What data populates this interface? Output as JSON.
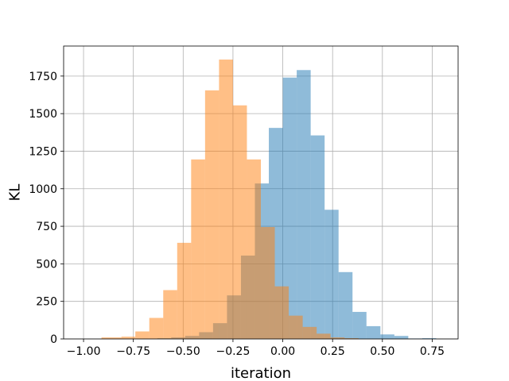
{
  "chart_data": {
    "type": "histogram",
    "xlabel": "iteration",
    "ylabel": "KL",
    "xlim": [
      -1.1,
      0.88
    ],
    "ylim": [
      0,
      1950
    ],
    "grid": true,
    "x_ticks": [
      -1.0,
      -0.75,
      -0.5,
      -0.25,
      0.0,
      0.25,
      0.5,
      0.75
    ],
    "x_tick_labels": [
      "−1.00",
      "−0.75",
      "−0.50",
      "−0.25",
      "0.00",
      "0.25",
      "0.50",
      "0.75"
    ],
    "y_ticks": [
      0,
      250,
      500,
      750,
      1000,
      1250,
      1500,
      1750
    ],
    "y_tick_labels": [
      "0",
      "250",
      "500",
      "750",
      "1000",
      "1250",
      "1500",
      "1750"
    ],
    "series": [
      {
        "color": "#1f77b4",
        "alpha": 0.5,
        "bins": [
          {
            "x0": -0.7,
            "x1": -0.63,
            "count": 2
          },
          {
            "x0": -0.63,
            "x1": -0.56,
            "count": 5
          },
          {
            "x0": -0.56,
            "x1": -0.49,
            "count": 10
          },
          {
            "x0": -0.49,
            "x1": -0.42,
            "count": 20
          },
          {
            "x0": -0.42,
            "x1": -0.35,
            "count": 45
          },
          {
            "x0": -0.35,
            "x1": -0.28,
            "count": 105
          },
          {
            "x0": -0.28,
            "x1": -0.21,
            "count": 290
          },
          {
            "x0": -0.21,
            "x1": -0.14,
            "count": 555
          },
          {
            "x0": -0.14,
            "x1": -0.07,
            "count": 1035
          },
          {
            "x0": -0.07,
            "x1": 0.0,
            "count": 1405
          },
          {
            "x0": 0.0,
            "x1": 0.07,
            "count": 1740
          },
          {
            "x0": 0.07,
            "x1": 0.14,
            "count": 1790
          },
          {
            "x0": 0.14,
            "x1": 0.21,
            "count": 1355
          },
          {
            "x0": 0.21,
            "x1": 0.28,
            "count": 860
          },
          {
            "x0": 0.28,
            "x1": 0.35,
            "count": 445
          },
          {
            "x0": 0.35,
            "x1": 0.42,
            "count": 180
          },
          {
            "x0": 0.42,
            "x1": 0.49,
            "count": 85
          },
          {
            "x0": 0.49,
            "x1": 0.56,
            "count": 30
          },
          {
            "x0": 0.56,
            "x1": 0.63,
            "count": 20
          },
          {
            "x0": 0.63,
            "x1": 0.7,
            "count": 3
          },
          {
            "x0": 0.7,
            "x1": 0.77,
            "count": 5
          }
        ]
      },
      {
        "color": "#ff7f0e",
        "alpha": 0.5,
        "bins": [
          {
            "x0": -0.91,
            "x1": -0.81,
            "count": 10
          },
          {
            "x0": -0.81,
            "x1": -0.74,
            "count": 15
          },
          {
            "x0": -0.74,
            "x1": -0.67,
            "count": 50
          },
          {
            "x0": -0.67,
            "x1": -0.6,
            "count": 140
          },
          {
            "x0": -0.6,
            "x1": -0.53,
            "count": 325
          },
          {
            "x0": -0.53,
            "x1": -0.46,
            "count": 640
          },
          {
            "x0": -0.46,
            "x1": -0.39,
            "count": 1195
          },
          {
            "x0": -0.39,
            "x1": -0.32,
            "count": 1655
          },
          {
            "x0": -0.32,
            "x1": -0.25,
            "count": 1860
          },
          {
            "x0": -0.25,
            "x1": -0.18,
            "count": 1555
          },
          {
            "x0": -0.18,
            "x1": -0.11,
            "count": 1195
          },
          {
            "x0": -0.11,
            "x1": -0.04,
            "count": 745
          },
          {
            "x0": -0.04,
            "x1": 0.03,
            "count": 350
          },
          {
            "x0": 0.03,
            "x1": 0.1,
            "count": 155
          },
          {
            "x0": 0.1,
            "x1": 0.17,
            "count": 80
          },
          {
            "x0": 0.17,
            "x1": 0.24,
            "count": 35
          },
          {
            "x0": 0.24,
            "x1": 0.31,
            "count": 10
          },
          {
            "x0": 0.31,
            "x1": 0.38,
            "count": 5
          }
        ]
      }
    ]
  }
}
